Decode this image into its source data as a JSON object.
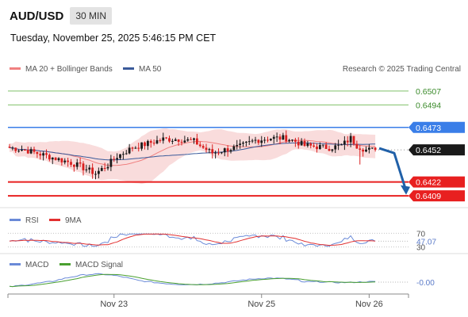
{
  "header": {
    "symbol": "AUD/USD",
    "timeframe": "30 MIN",
    "datetime": "Tuesday, November 25, 2025 5:46:15 PM CET"
  },
  "legend": {
    "ma20_label": "MA 20 + Bollinger Bands",
    "ma50_label": "MA 50",
    "credit": "Research © 2025 Trading Central"
  },
  "colors": {
    "bull": "#1a1a1a",
    "bear": "#d91f1f",
    "ma20": "#f08080",
    "ma50": "#3a5a9a",
    "bands": "#f8d6d6",
    "resistance_green": "#7fc06a",
    "pivot_blue": "#3a7ee8",
    "support_red": "#e82020",
    "arrow": "#2060a8",
    "rsi": "#6a8ad8",
    "rsi_ma": "#e23030",
    "macd": "#6a8ad8",
    "macd_signal": "#4aa030"
  },
  "chart_data": {
    "type": "candlestick",
    "ylim": [
      0.6398,
      0.6518
    ],
    "current_price": 0.6452,
    "levels": [
      {
        "label": "0.6507",
        "value": 0.6507,
        "kind": "resistance"
      },
      {
        "label": "0.6494",
        "value": 0.6494,
        "kind": "resistance"
      },
      {
        "label": "0.6473",
        "value": 0.6473,
        "kind": "pivot"
      },
      {
        "label": "0.6452",
        "value": 0.6452,
        "kind": "current"
      },
      {
        "label": "0.6422",
        "value": 0.6422,
        "kind": "support"
      },
      {
        "label": "0.6409",
        "value": 0.6409,
        "kind": "support"
      }
    ],
    "x_ticks": [
      {
        "label": "Nov 23",
        "index": 34
      },
      {
        "label": "Nov 25",
        "index": 82
      },
      {
        "label": "Nov 26",
        "index": 117
      }
    ],
    "forecast_target": 0.6413,
    "rsi": {
      "label": "RSI",
      "ma_label": "9MA",
      "levels": [
        70,
        30
      ],
      "level_labels": [
        "70",
        "30"
      ],
      "current": 47.07,
      "current_label": "47.07"
    },
    "macd": {
      "label": "MACD",
      "signal_label": "MACD Signal",
      "current": 0.0,
      "current_label": "-0.00"
    }
  }
}
